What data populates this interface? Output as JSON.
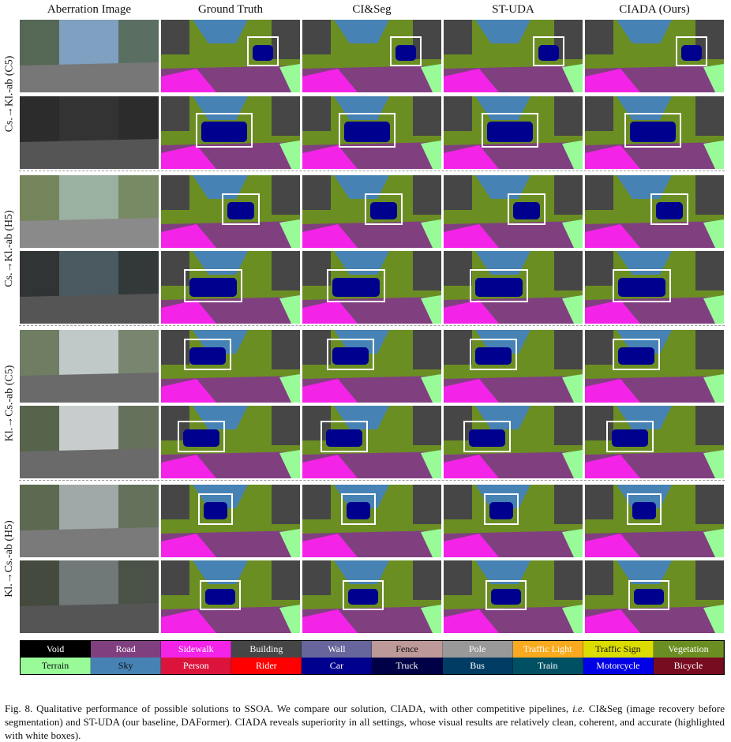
{
  "columns": [
    "Aberration Image",
    "Ground Truth",
    "CI&Seg",
    "ST-UDA",
    "CIADA (Ours)"
  ],
  "groups": [
    {
      "label": "Cs.→Kl.-ab (C5)"
    },
    {
      "label": "Cs.→Kl.-ab (H5)"
    },
    {
      "label": "Kl.→Cs.-ab (C5)"
    },
    {
      "label": "Kl.→Cs.-ab (H5)"
    }
  ],
  "legend": [
    {
      "name": "Void",
      "color": "#000000",
      "text": "#ffffff"
    },
    {
      "name": "Road",
      "color": "#804080",
      "text": "#ffffff"
    },
    {
      "name": "Sidewalk",
      "color": "#f423e8",
      "text": "#ffffff"
    },
    {
      "name": "Building",
      "color": "#464646",
      "text": "#ffffff"
    },
    {
      "name": "Wall",
      "color": "#66669c",
      "text": "#ffffff"
    },
    {
      "name": "Fence",
      "color": "#be9999",
      "text": "#111111"
    },
    {
      "name": "Pole",
      "color": "#999999",
      "text": "#ffffff"
    },
    {
      "name": "Traffic Light",
      "color": "#faaa1e",
      "text": "#ffffff"
    },
    {
      "name": "Traffic Sign",
      "color": "#dcdc00",
      "text": "#111111"
    },
    {
      "name": "Vegetation",
      "color": "#6b8e23",
      "text": "#ffffff"
    },
    {
      "name": "Terrain",
      "color": "#98fb98",
      "text": "#111111"
    },
    {
      "name": "Sky",
      "color": "#4682b4",
      "text": "#111111"
    },
    {
      "name": "Person",
      "color": "#dc143c",
      "text": "#ffffff"
    },
    {
      "name": "Rider",
      "color": "#ff0000",
      "text": "#ffffff"
    },
    {
      "name": "Car",
      "color": "#00008e",
      "text": "#ffffff"
    },
    {
      "name": "Truck",
      "color": "#000046",
      "text": "#ffffff"
    },
    {
      "name": "Bus",
      "color": "#003c64",
      "text": "#ffffff"
    },
    {
      "name": "Train",
      "color": "#005064",
      "text": "#ffffff"
    },
    {
      "name": "Motorcycle",
      "color": "#0000e6",
      "text": "#ffffff"
    },
    {
      "name": "Bicycle",
      "color": "#770b20",
      "text": "#ffffff"
    }
  ],
  "caption": {
    "prefix": "Fig. 8.  Qualitative performance of possible solutions to SSOA. We compare our solution, CIADA, with other competitive pipelines,",
    "ie": "i.e.",
    "suffix": "CI&Seg (image recovery before segmentation) and ST-UDA (our baseline, DAFormer). CIADA reveals superiority in all settings, whose visual results are relatively clean, coherent, and accurate (highlighted with white boxes)."
  }
}
